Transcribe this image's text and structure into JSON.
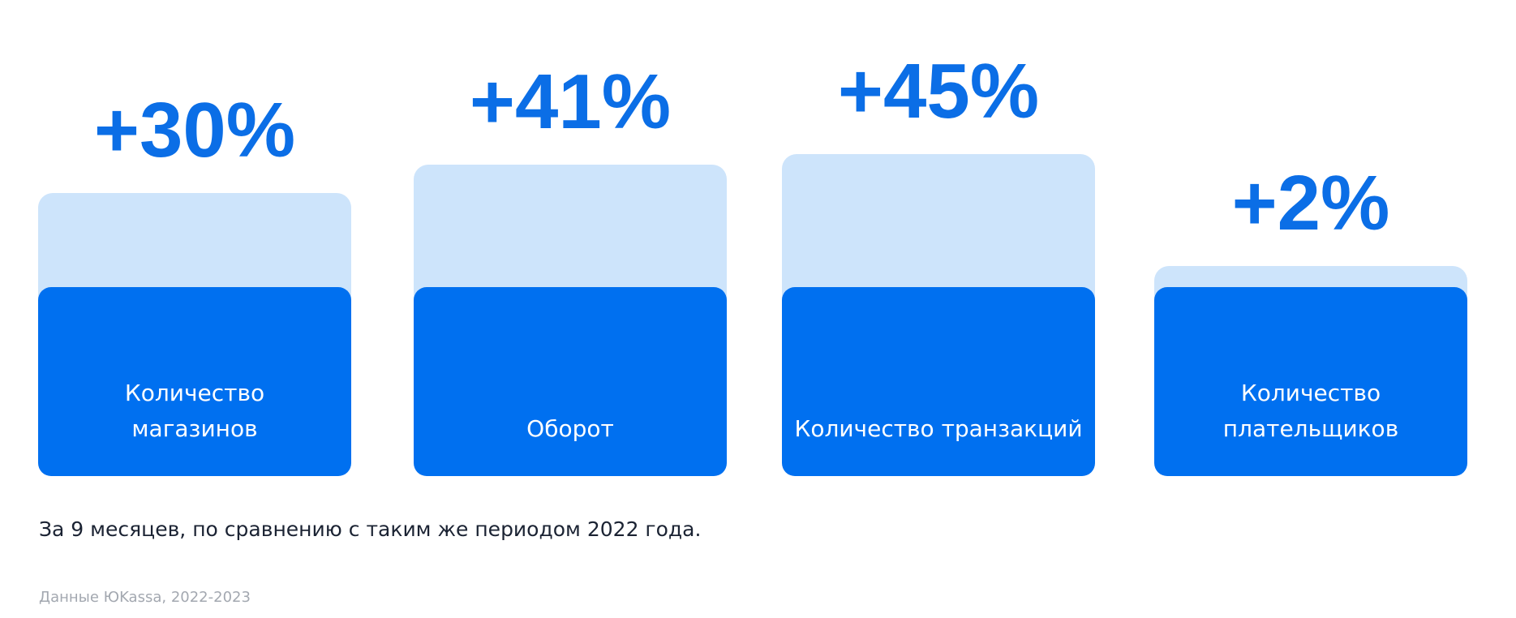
{
  "chart_data": {
    "type": "bar",
    "categories": [
      "Количество\nмагазинов",
      "Оборот",
      "Количество транзакций",
      "Количество\nплательщиков"
    ],
    "values": [
      30,
      41,
      45,
      2
    ],
    "value_labels": [
      "+30%",
      "+41%",
      "+45%",
      "+2%"
    ],
    "color": "#cde4fb",
    "base_color": "#0070f0",
    "label_color": "#0b6ee6",
    "note": "За 9 месяцев, по сравнению с таким же периодом 2022 года.",
    "source": "Данные ЮKassa, 2022-2023"
  }
}
